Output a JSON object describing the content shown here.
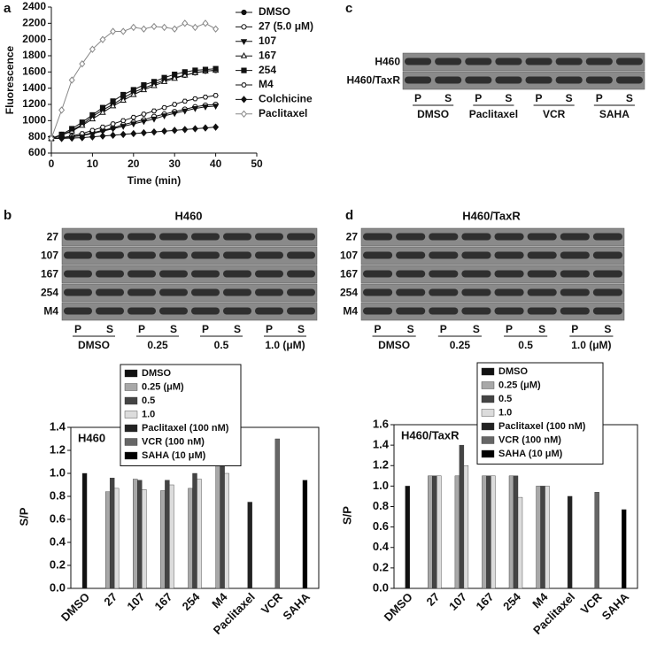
{
  "panel_labels": [
    "a",
    "b",
    "c",
    "d"
  ],
  "chart_data": [
    {
      "type": "line",
      "x_label": "Time (min)",
      "y_label": "Fluorescence",
      "x": [
        0,
        2.5,
        5,
        7.5,
        10,
        12.5,
        15,
        17.5,
        20,
        22.5,
        25,
        27.5,
        30,
        32.5,
        35,
        37.5,
        40
      ],
      "xlim": [
        0,
        50
      ],
      "xticks": [
        0,
        10,
        20,
        30,
        40,
        50
      ],
      "ylim": [
        600,
        2400
      ],
      "yticks": [
        600,
        800,
        1000,
        1200,
        1400,
        1600,
        1800,
        2000,
        2200,
        2400
      ],
      "series": [
        {
          "name": "DMSO",
          "color": "#111111",
          "marker": "circle",
          "filled": true,
          "values": [
            780,
            820,
            880,
            950,
            1050,
            1130,
            1200,
            1280,
            1350,
            1400,
            1450,
            1500,
            1530,
            1560,
            1590,
            1610,
            1620
          ]
        },
        {
          "name": "27 (5.0 μM)",
          "color": "#111111",
          "marker": "circle",
          "filled": false,
          "values": [
            780,
            790,
            800,
            820,
            850,
            880,
            910,
            950,
            980,
            1010,
            1050,
            1080,
            1110,
            1140,
            1170,
            1190,
            1200
          ]
        },
        {
          "name": "107",
          "color": "#111111",
          "marker": "triangle-down",
          "filled": true,
          "values": [
            780,
            785,
            800,
            815,
            840,
            870,
            900,
            930,
            960,
            990,
            1020,
            1060,
            1090,
            1120,
            1150,
            1170,
            1180
          ]
        },
        {
          "name": "167",
          "color": "#111111",
          "marker": "triangle-up",
          "filled": false,
          "values": [
            780,
            820,
            870,
            940,
            1020,
            1100,
            1180,
            1250,
            1320,
            1380,
            1430,
            1480,
            1520,
            1560,
            1590,
            1610,
            1620
          ]
        },
        {
          "name": "254",
          "color": "#111111",
          "marker": "square",
          "filled": true,
          "values": [
            780,
            830,
            900,
            980,
            1070,
            1160,
            1240,
            1320,
            1380,
            1440,
            1480,
            1530,
            1570,
            1600,
            1620,
            1630,
            1640
          ]
        },
        {
          "name": "M4",
          "color": "#111111",
          "marker": "hexagon",
          "filled": false,
          "values": [
            780,
            790,
            810,
            840,
            880,
            920,
            960,
            1000,
            1040,
            1080,
            1120,
            1160,
            1200,
            1240,
            1270,
            1290,
            1310
          ]
        },
        {
          "name": "Colchicine",
          "color": "#111111",
          "marker": "diamond",
          "filled": true,
          "values": [
            780,
            780,
            785,
            790,
            800,
            810,
            820,
            830,
            840,
            850,
            860,
            870,
            880,
            890,
            900,
            910,
            920
          ]
        },
        {
          "name": "Paclitaxel",
          "color": "#888888",
          "marker": "diamond",
          "filled": false,
          "values": [
            780,
            1130,
            1500,
            1700,
            1880,
            2000,
            2100,
            2100,
            2150,
            2130,
            2160,
            2150,
            2130,
            2200,
            2150,
            2200,
            2130
          ]
        }
      ]
    },
    {
      "type": "bar",
      "label": "H460",
      "y_label": "S/P",
      "categories": [
        "DMSO",
        "27",
        "107",
        "167",
        "254",
        "M4",
        "Paclitaxel",
        "VCR",
        "SAHA"
      ],
      "ylim": [
        0,
        1.4
      ],
      "yticks": [
        {
          "value": 0,
          "label": "0.0"
        },
        0.2,
        0.4,
        0.6,
        0.8,
        {
          "value": 1,
          "label": "1.0"
        },
        1.2,
        1.4
      ],
      "series": [
        {
          "name": "DMSO",
          "color": "#111111",
          "values": [
            1.0,
            null,
            null,
            null,
            null,
            null,
            null,
            null,
            null
          ]
        },
        {
          "name": "0.25 (μM)",
          "color": "#a8a8a8",
          "values": [
            null,
            0.84,
            0.95,
            0.85,
            0.87,
            1.1,
            null,
            null,
            null
          ]
        },
        {
          "name": "0.5",
          "color": "#444444",
          "values": [
            null,
            0.96,
            0.94,
            0.94,
            1.0,
            1.1,
            null,
            null,
            null
          ]
        },
        {
          "name": "1.0",
          "color": "#dcdcdc",
          "values": [
            null,
            0.87,
            0.86,
            0.9,
            0.95,
            1.0,
            null,
            null,
            null
          ]
        },
        {
          "name": "Paclitaxel (100 nM)",
          "color": "#222222",
          "values": [
            null,
            null,
            null,
            null,
            null,
            null,
            0.75,
            null,
            null
          ]
        },
        {
          "name": "VCR (100 nM)",
          "color": "#666666",
          "values": [
            null,
            null,
            null,
            null,
            null,
            null,
            null,
            1.3,
            null
          ]
        },
        {
          "name": "SAHA (10 μM)",
          "color": "#000000",
          "values": [
            null,
            null,
            null,
            null,
            null,
            null,
            null,
            null,
            0.94
          ]
        }
      ]
    },
    {
      "type": "bar",
      "label": "H460/TaxR",
      "y_label": "S/P",
      "categories": [
        "DMSO",
        "27",
        "107",
        "167",
        "254",
        "M4",
        "Paclitaxel",
        "VCR",
        "SAHA"
      ],
      "ylim": [
        0,
        1.6
      ],
      "yticks": [
        {
          "value": 0,
          "label": "0.0"
        },
        0.2,
        0.4,
        0.6,
        0.8,
        {
          "value": 1,
          "label": "1.0"
        },
        1.2,
        1.4,
        1.6
      ],
      "series": [
        {
          "name": "DMSO",
          "color": "#111111",
          "values": [
            1.0,
            null,
            null,
            null,
            null,
            null,
            null,
            null,
            null
          ]
        },
        {
          "name": "0.25 (μM)",
          "color": "#a8a8a8",
          "values": [
            null,
            1.1,
            1.1,
            1.1,
            1.1,
            1.0,
            null,
            null,
            null
          ]
        },
        {
          "name": "0.5",
          "color": "#444444",
          "values": [
            null,
            1.1,
            1.4,
            1.1,
            1.1,
            1.0,
            null,
            null,
            null
          ]
        },
        {
          "name": "1.0",
          "color": "#dcdcdc",
          "values": [
            null,
            1.1,
            1.2,
            1.1,
            0.89,
            1.0,
            null,
            null,
            null
          ]
        },
        {
          "name": "Paclitaxel (100 nM)",
          "color": "#222222",
          "values": [
            null,
            null,
            null,
            null,
            null,
            null,
            0.9,
            null,
            null
          ]
        },
        {
          "name": "VCR (100 nM)",
          "color": "#666666",
          "values": [
            null,
            null,
            null,
            null,
            null,
            null,
            null,
            0.94,
            null
          ]
        },
        {
          "name": "SAHA (10 μM)",
          "color": "#000000",
          "values": [
            null,
            null,
            null,
            null,
            null,
            null,
            null,
            null,
            0.77
          ]
        }
      ]
    }
  ],
  "blots": [
    {
      "title": "H460",
      "rows": [
        "27",
        "107",
        "167",
        "254",
        "M4"
      ],
      "lane_labels": [
        "P",
        "S"
      ],
      "groups": [
        "DMSO",
        "0.25",
        "0.5",
        "1.0 (μM)"
      ]
    },
    {
      "rows": [
        "H460",
        "H460/TaxR"
      ],
      "lane_labels": [
        "P",
        "S"
      ],
      "groups": [
        "DMSO",
        "Paclitaxel",
        "VCR",
        "SAHA"
      ]
    },
    {
      "title": "H460/TaxR",
      "rows": [
        "27",
        "107",
        "167",
        "254",
        "M4"
      ],
      "lane_labels": [
        "P",
        "S"
      ],
      "groups": [
        "DMSO",
        "0.25",
        "0.5",
        "1.0 (μM)"
      ]
    }
  ]
}
